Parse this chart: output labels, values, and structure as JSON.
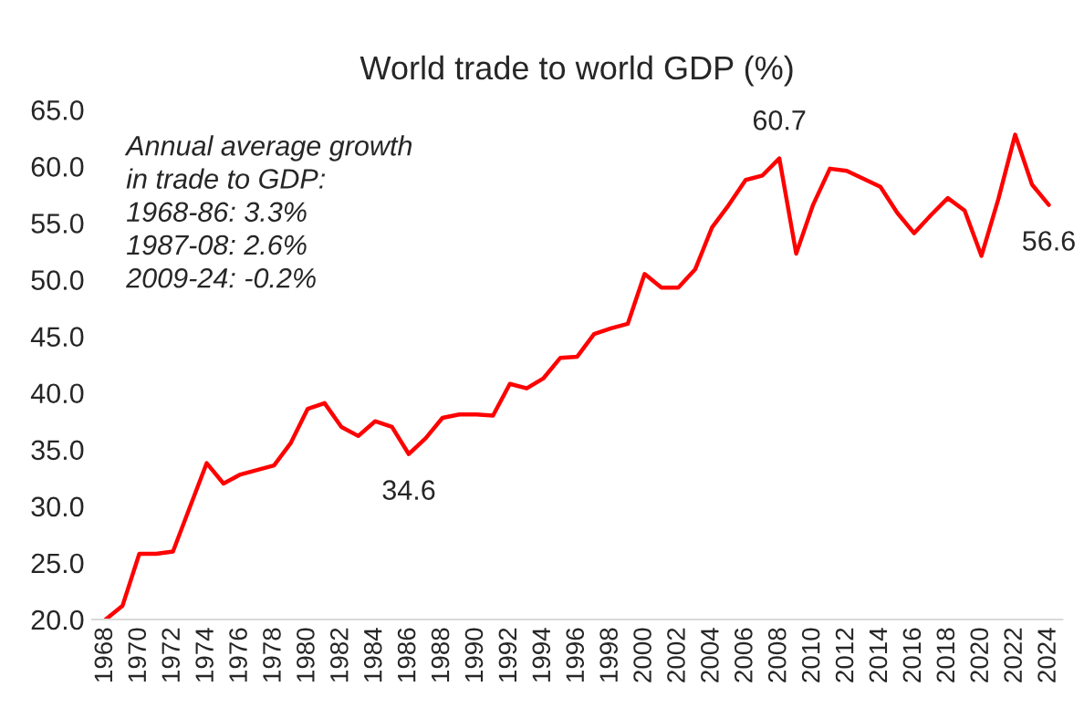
{
  "chart_data": {
    "type": "line",
    "title": "World trade to world GDP (%)",
    "categories": [
      "1968",
      null,
      "1970",
      null,
      "1972",
      null,
      "1974",
      null,
      "1976",
      null,
      "1978",
      null,
      "1980",
      null,
      "1982",
      null,
      "1984",
      null,
      "1986",
      null,
      "1988",
      null,
      "1990",
      null,
      "1992",
      null,
      "1994",
      null,
      "1996",
      null,
      "1998",
      null,
      "2000",
      null,
      "2002",
      null,
      "2004",
      null,
      "2006",
      null,
      "2008",
      null,
      "2010",
      null,
      "2012",
      null,
      "2014",
      null,
      "2016",
      null,
      "2018",
      null,
      "2020",
      null,
      "2022",
      null,
      "2024"
    ],
    "series": [
      {
        "color": "#ff0000",
        "values": [
          20.0,
          21.2,
          25.8,
          25.8,
          26.0,
          29.9,
          33.8,
          32.0,
          32.8,
          33.2,
          33.6,
          35.6,
          38.6,
          39.1,
          37.0,
          36.2,
          37.5,
          37.0,
          34.6,
          36.0,
          37.8,
          38.1,
          38.1,
          38.0,
          40.8,
          40.4,
          41.3,
          43.1,
          43.2,
          45.2,
          45.7,
          46.1,
          50.5,
          49.3,
          49.3,
          50.9,
          54.6,
          56.6,
          58.8,
          59.2,
          60.7,
          52.3,
          56.6,
          59.8,
          59.6,
          58.9,
          58.2,
          55.9,
          54.1,
          55.7,
          57.2,
          56.1,
          52.1,
          57.1,
          62.8,
          58.4,
          56.6
        ],
        "value_labels": [
          null,
          null,
          null,
          null,
          null,
          null,
          null,
          null,
          null,
          null,
          null,
          null,
          null,
          null,
          null,
          null,
          null,
          null,
          "34.6",
          null,
          null,
          null,
          null,
          null,
          null,
          null,
          null,
          null,
          null,
          null,
          null,
          null,
          null,
          null,
          null,
          null,
          null,
          null,
          null,
          null,
          "60.7",
          null,
          null,
          null,
          null,
          null,
          null,
          null,
          null,
          null,
          null,
          null,
          null,
          null,
          null,
          null,
          "56.6"
        ]
      }
    ],
    "ylim": [
      20,
      65
    ],
    "yticks": [
      {
        "value": 20,
        "label": "20.0"
      },
      {
        "value": 25,
        "label": "25.0"
      },
      {
        "value": 30,
        "label": "30.0"
      },
      {
        "value": 35,
        "label": "35.0"
      },
      {
        "value": 40,
        "label": "40.0"
      },
      {
        "value": 45,
        "label": "45.0"
      },
      {
        "value": 50,
        "label": "50.0"
      },
      {
        "value": 55,
        "label": "55.0"
      },
      {
        "value": 60,
        "label": "60.0"
      },
      {
        "value": 65,
        "label": "65.0"
      }
    ],
    "annotations": [
      "Annual average growth\nin trade to GDP:\n1968-86: 3.3%\n1987-08: 2.6%\n2009-24: -0.2%"
    ],
    "grid": false,
    "legend": false
  }
}
